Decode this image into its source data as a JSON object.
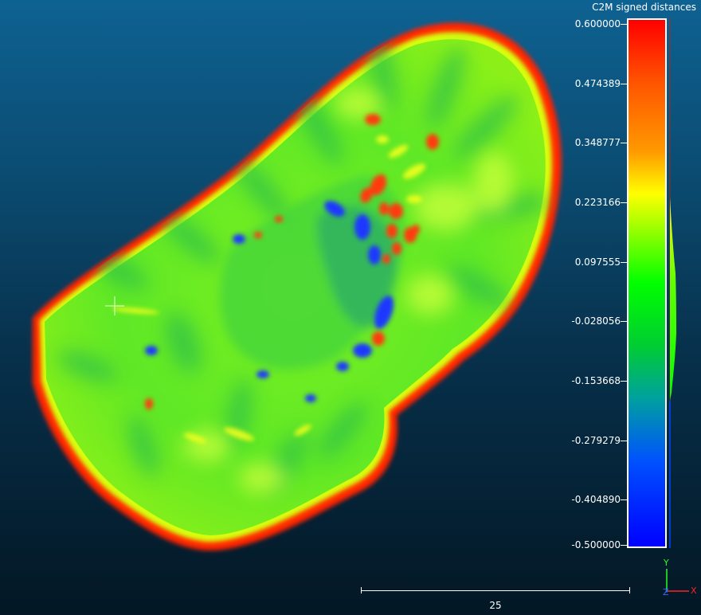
{
  "scalar_field": {
    "title": "C2M signed distances",
    "ticks": [
      {
        "label": "0.600000",
        "value": 0.6
      },
      {
        "label": "0.474389",
        "value": 0.474389
      },
      {
        "label": "0.348777",
        "value": 0.348777
      },
      {
        "label": "0.223166",
        "value": 0.223166
      },
      {
        "label": "0.097555",
        "value": 0.097555
      },
      {
        "label": "-0.028056",
        "value": -0.028056
      },
      {
        "label": "-0.153668",
        "value": -0.153668
      },
      {
        "label": "-0.279279",
        "value": -0.279279
      },
      {
        "label": "-0.404890",
        "value": -0.40489
      },
      {
        "label": "-0.500000",
        "value": -0.5
      }
    ],
    "min": -0.5,
    "max": 0.6,
    "colors": {
      "max": "#ff0000",
      "high": "#ffff00",
      "mid": "#00ff00",
      "low": "#00a0a0",
      "min": "#0000ff"
    }
  },
  "scale_bar": {
    "label": "25"
  },
  "axes": {
    "y": "Y",
    "z": "Z",
    "x": "X",
    "y_color": "#22ff22",
    "x_color": "#ff2222",
    "z_color": "#3366ff"
  }
}
